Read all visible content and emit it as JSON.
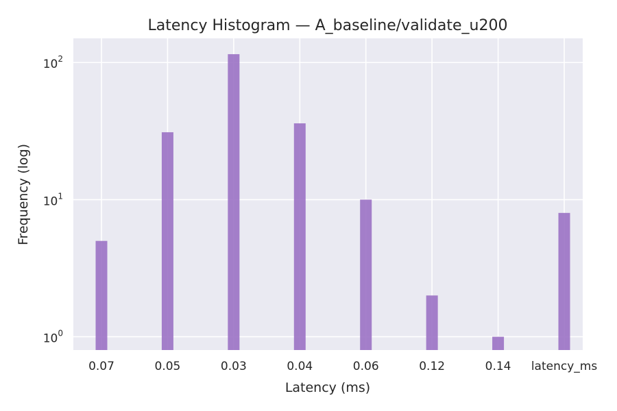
{
  "chart_data": {
    "type": "bar",
    "title": "Latency Histogram — A_baseline/validate_u200",
    "xlabel": "Latency (ms)",
    "ylabel": "Frequency (log)",
    "yscale": "log",
    "ylim": [
      0.8,
      150
    ],
    "yticks": [
      {
        "base": "10",
        "exp": "0",
        "value": 1
      },
      {
        "base": "10",
        "exp": "1",
        "value": 10
      },
      {
        "base": "10",
        "exp": "2",
        "value": 100
      }
    ],
    "categories": [
      "0.07",
      "0.05",
      "0.03",
      "0.04",
      "0.06",
      "0.12",
      "0.14",
      "latency_ms"
    ],
    "values": [
      5,
      31,
      115,
      36,
      10,
      2,
      1,
      8
    ],
    "bar_color": "#9b72c4",
    "background": "#eaeaf2",
    "grid": true
  }
}
